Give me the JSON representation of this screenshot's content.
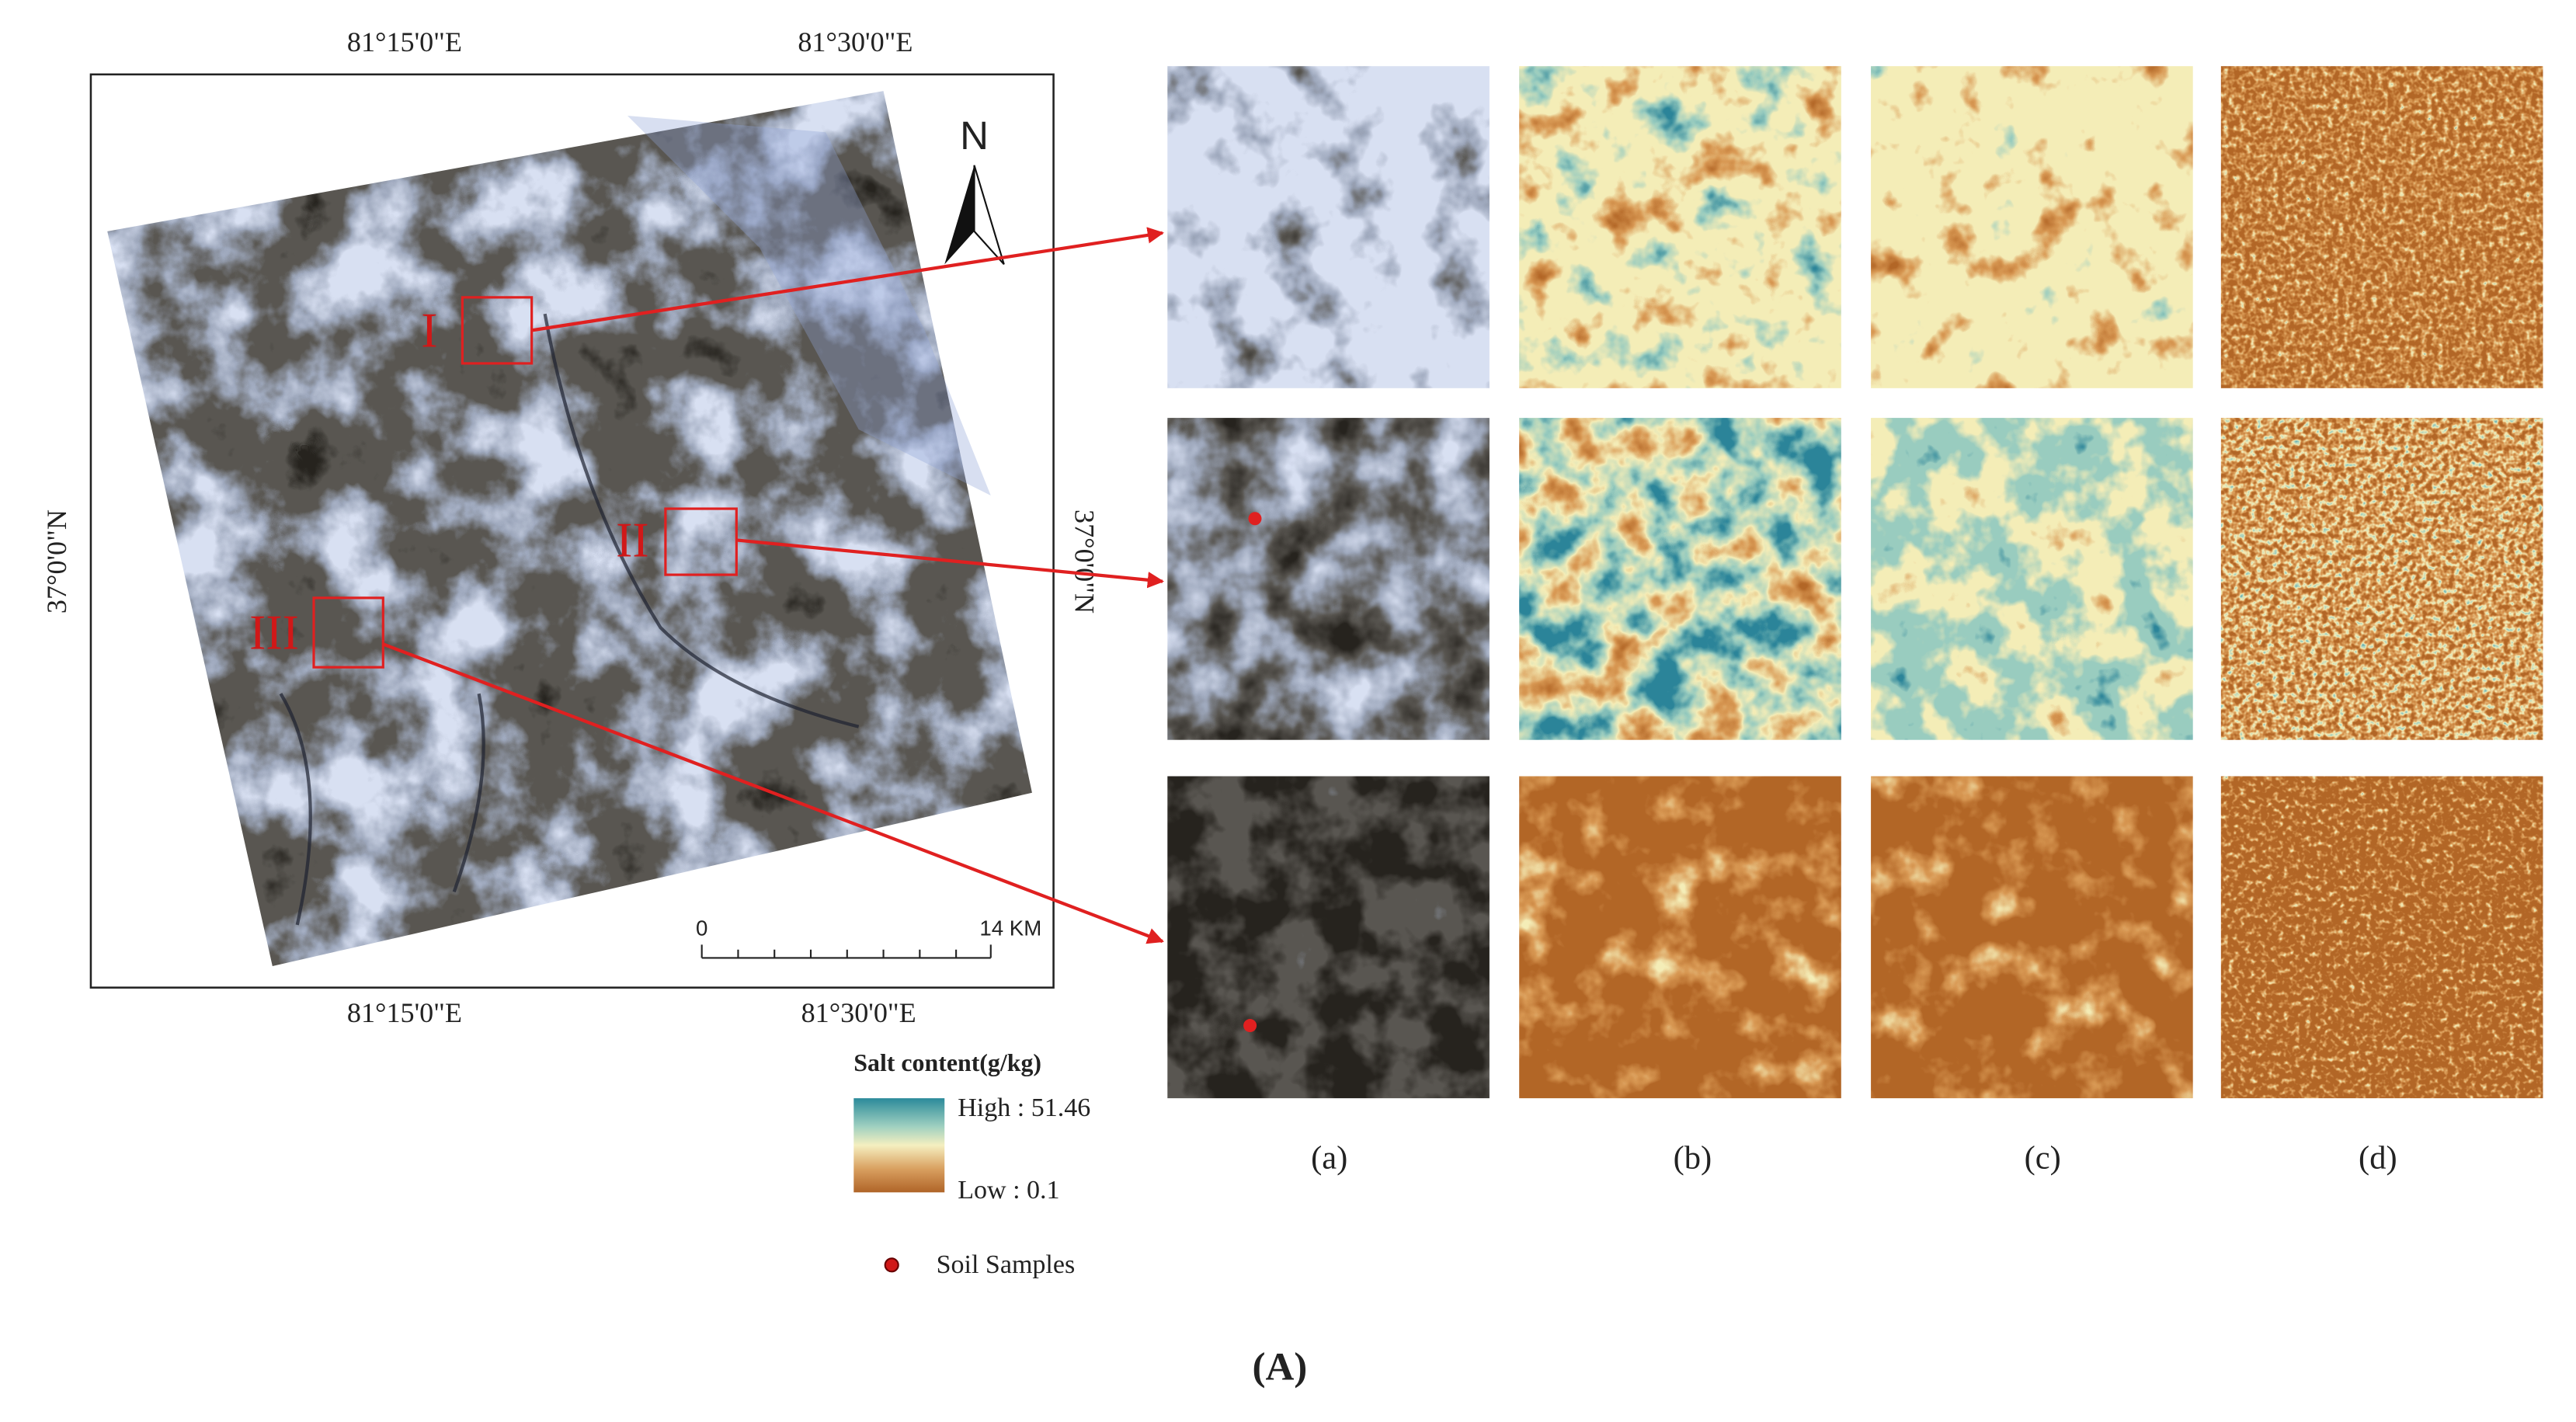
{
  "map": {
    "top_labels": [
      "81°15'0\"E",
      "81°30'0\"E"
    ],
    "bottom_labels": [
      "81°15'0\"E",
      "81°30'0\"E"
    ],
    "left_label": "37°0'0\"N",
    "right_label": "37°0'0\"N",
    "regions": [
      "I",
      "II",
      "III"
    ],
    "north": "N",
    "scale": {
      "start": "0",
      "end": "14 KM"
    }
  },
  "legend": {
    "title": "Salt content(g/kg)",
    "high": "High : 51.46",
    "low": "Low : 0.1",
    "samples": "Soil Samples"
  },
  "panel_labels": [
    "(a)",
    "(b)",
    "(c)",
    "(d)"
  ],
  "figure_label": "(A)"
}
